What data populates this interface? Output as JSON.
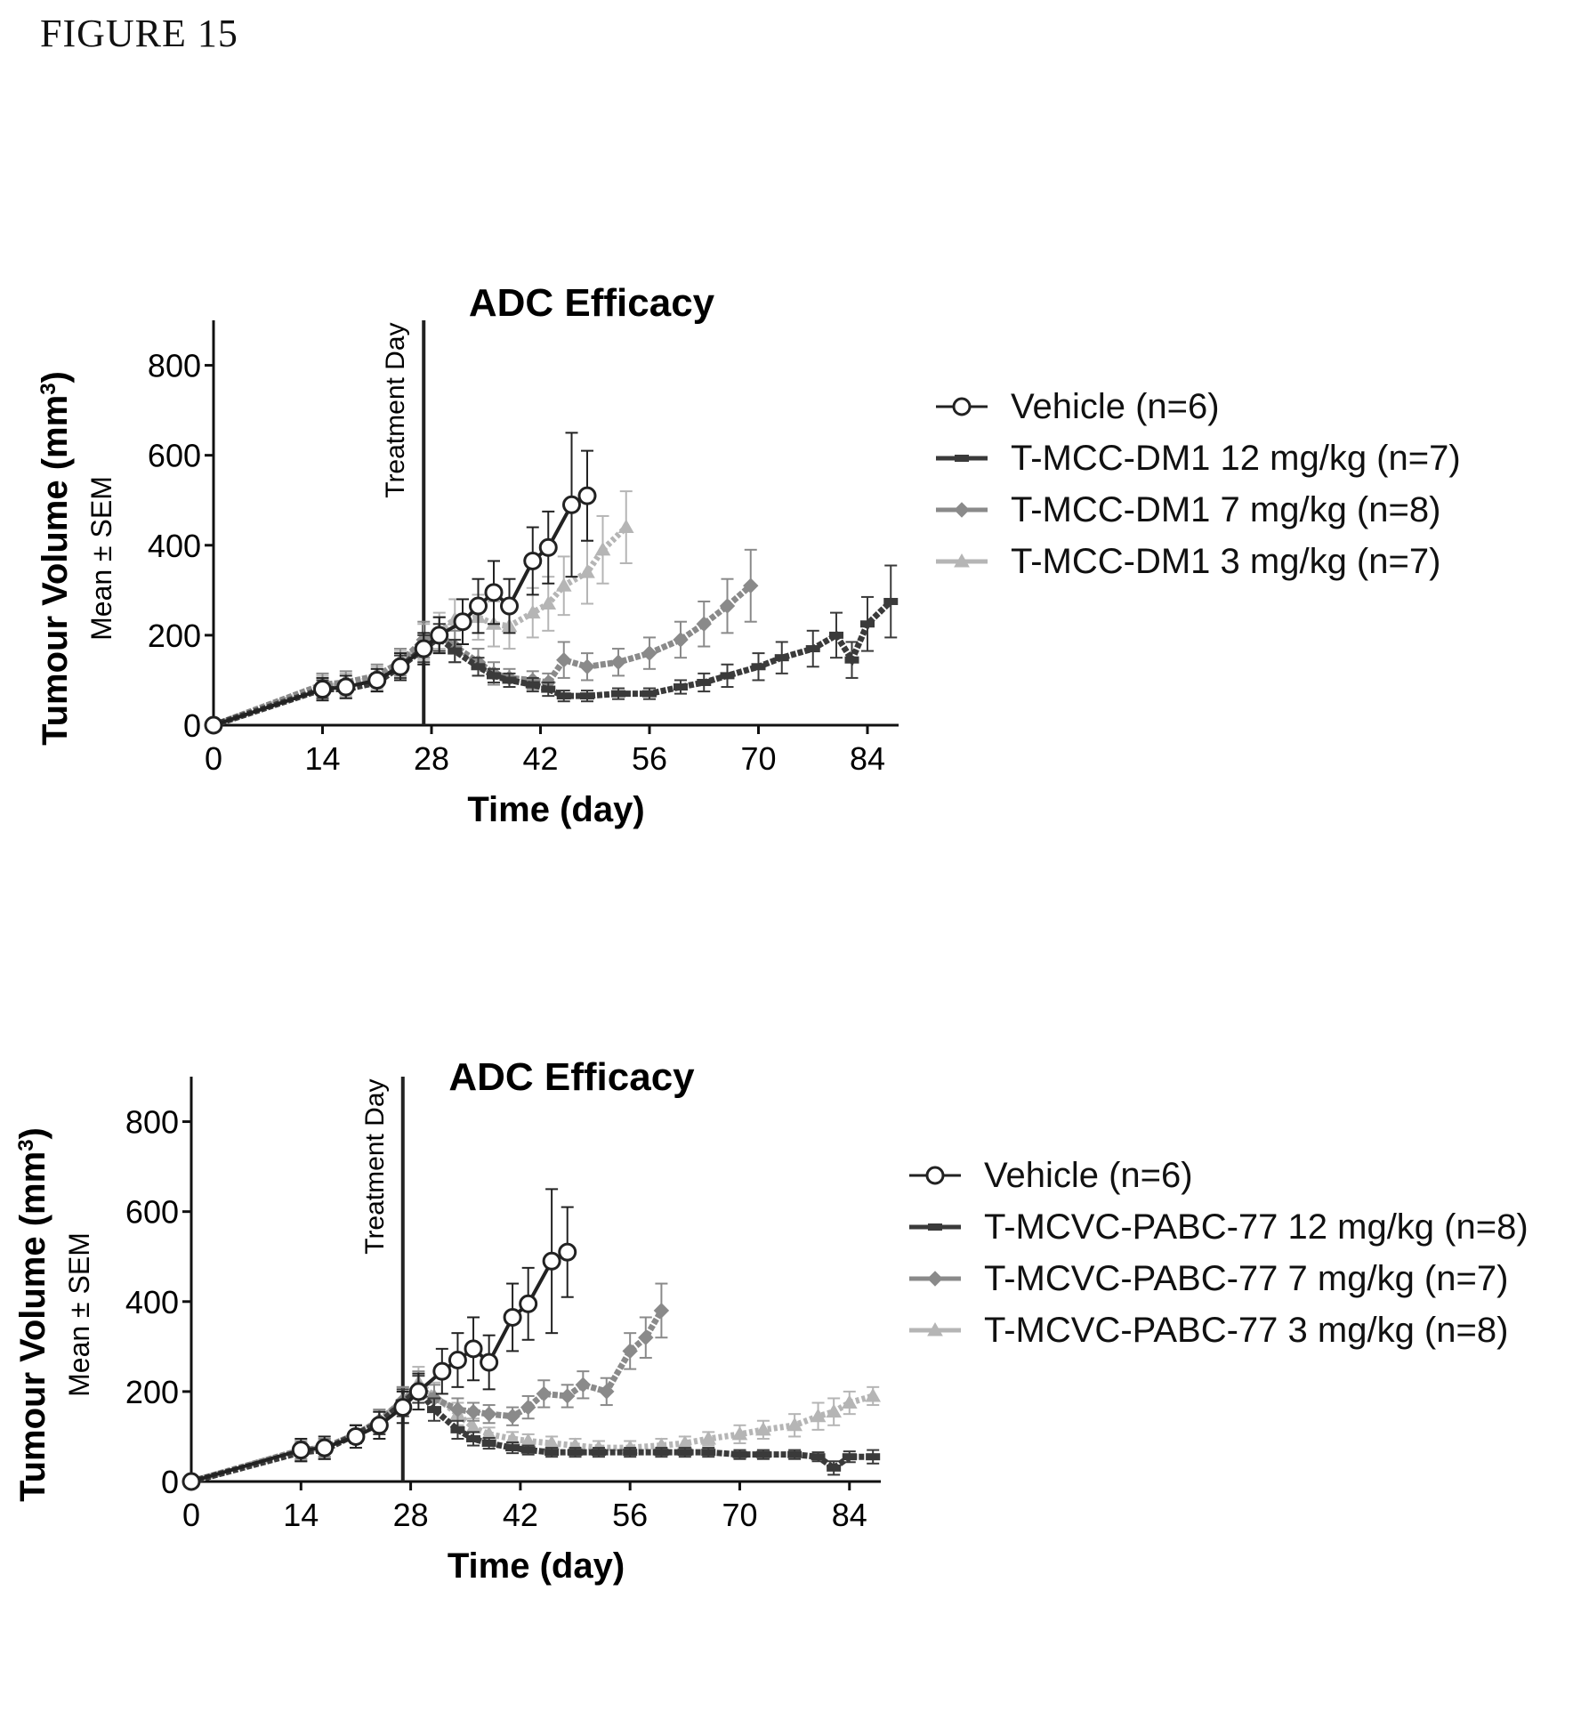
{
  "figure_label": "FIGURE 15",
  "colors": {
    "vehicle": "#222222",
    "dose12": "#3a3a3a",
    "dose7": "#8a8a8a",
    "dose3": "#b5b5b5",
    "axis": "#111111"
  },
  "chart_data": [
    {
      "type": "line",
      "title": "ADC  Efficacy",
      "xlabel": "Time (day)",
      "ylabel": "Tumour  Volume (mm",
      "ylabel_sup": "3",
      "ylabel2": "Mean ± SEM",
      "annotation": "Treatment Day",
      "annotation_x": 27,
      "xlim": [
        0,
        88
      ],
      "ylim": [
        0,
        900
      ],
      "xticks": [
        0,
        14,
        28,
        42,
        56,
        70,
        84
      ],
      "yticks": [
        0,
        200,
        400,
        600,
        800
      ],
      "legend_position": "right",
      "series": [
        {
          "name": "Vehicle (n=6)",
          "marker": "circle",
          "color_key": "vehicle",
          "x": [
            0,
            14,
            17,
            21,
            24,
            27,
            29,
            32,
            34,
            36,
            38,
            41,
            43,
            46,
            48
          ],
          "y": [
            0,
            80,
            85,
            100,
            130,
            170,
            200,
            230,
            265,
            295,
            265,
            365,
            395,
            490,
            510
          ],
          "err": [
            0,
            25,
            25,
            25,
            30,
            35,
            40,
            50,
            60,
            70,
            60,
            75,
            80,
            160,
            100
          ]
        },
        {
          "name": "T-MCC-DM1 12 mg/kg (n=7)",
          "marker": "dash",
          "color_key": "dose12",
          "x": [
            0,
            14,
            17,
            21,
            24,
            27,
            29,
            31,
            34,
            36,
            38,
            41,
            43,
            45,
            48,
            52,
            56,
            60,
            63,
            66,
            70,
            73,
            77,
            80,
            82,
            84,
            87
          ],
          "y": [
            0,
            80,
            80,
            95,
            130,
            170,
            195,
            165,
            130,
            110,
            100,
            90,
            80,
            65,
            65,
            70,
            70,
            85,
            95,
            110,
            130,
            150,
            170,
            200,
            145,
            225,
            275
          ],
          "err": [
            0,
            20,
            20,
            20,
            25,
            30,
            30,
            25,
            20,
            15,
            15,
            15,
            15,
            12,
            12,
            12,
            12,
            15,
            20,
            25,
            30,
            35,
            40,
            50,
            40,
            60,
            80
          ]
        },
        {
          "name": "T-MCC-DM1 7 mg/kg (n=8)",
          "marker": "diamond",
          "color_key": "dose7",
          "x": [
            0,
            14,
            17,
            21,
            24,
            27,
            29,
            31,
            34,
            36,
            38,
            41,
            43,
            45,
            48,
            52,
            56,
            60,
            63,
            66,
            69
          ],
          "y": [
            0,
            90,
            95,
            110,
            140,
            190,
            200,
            175,
            140,
            115,
            105,
            100,
            95,
            145,
            130,
            140,
            160,
            190,
            225,
            265,
            310
          ],
          "err": [
            0,
            25,
            25,
            25,
            30,
            40,
            40,
            35,
            30,
            25,
            20,
            20,
            20,
            40,
            30,
            30,
            35,
            40,
            50,
            60,
            80
          ]
        },
        {
          "name": "T-MCC-DM1 3 mg/kg (n=7)",
          "marker": "tri",
          "color_key": "dose3",
          "x": [
            0,
            14,
            17,
            21,
            24,
            27,
            29,
            31,
            34,
            36,
            38,
            41,
            43,
            45,
            48,
            50,
            53
          ],
          "y": [
            0,
            85,
            90,
            105,
            135,
            185,
            210,
            235,
            240,
            225,
            220,
            250,
            270,
            310,
            340,
            390,
            440
          ],
          "err": [
            0,
            25,
            25,
            25,
            30,
            40,
            40,
            45,
            50,
            50,
            50,
            55,
            60,
            65,
            70,
            75,
            80
          ]
        }
      ]
    },
    {
      "type": "line",
      "title": "ADC  Efficacy",
      "xlabel": "Time (day)",
      "ylabel": "Tumour  Volume (mm",
      "ylabel_sup": "3",
      "ylabel2": "Mean ± SEM",
      "annotation": "Treatment Day",
      "annotation_x": 27,
      "xlim": [
        0,
        88
      ],
      "ylim": [
        0,
        900
      ],
      "xticks": [
        0,
        14,
        28,
        42,
        56,
        70,
        84
      ],
      "yticks": [
        0,
        200,
        400,
        600,
        800
      ],
      "legend_position": "right",
      "series": [
        {
          "name": "Vehicle (n=6)",
          "marker": "circle",
          "color_key": "vehicle",
          "x": [
            0,
            14,
            17,
            21,
            24,
            27,
            29,
            32,
            34,
            36,
            38,
            41,
            43,
            46,
            48
          ],
          "y": [
            0,
            70,
            75,
            100,
            125,
            165,
            200,
            245,
            270,
            295,
            265,
            365,
            395,
            490,
            510
          ],
          "err": [
            0,
            25,
            25,
            25,
            30,
            35,
            40,
            50,
            60,
            70,
            60,
            75,
            80,
            160,
            100
          ]
        },
        {
          "name": "T-MCVC-PABC-77 12 mg/kg (n=8)",
          "marker": "dash",
          "color_key": "dose12",
          "x": [
            0,
            14,
            17,
            21,
            24,
            27,
            29,
            31,
            34,
            36,
            38,
            41,
            43,
            46,
            49,
            52,
            56,
            60,
            63,
            66,
            70,
            73,
            77,
            80,
            82,
            84,
            87
          ],
          "y": [
            0,
            65,
            70,
            105,
            130,
            175,
            205,
            160,
            115,
            95,
            85,
            75,
            70,
            65,
            65,
            65,
            65,
            65,
            65,
            65,
            60,
            60,
            60,
            55,
            30,
            55,
            55
          ],
          "err": [
            0,
            20,
            20,
            20,
            25,
            30,
            30,
            25,
            20,
            15,
            12,
            12,
            10,
            10,
            10,
            10,
            10,
            10,
            10,
            10,
            10,
            10,
            10,
            10,
            15,
            12,
            15
          ]
        },
        {
          "name": "T-MCVC-PABC-77 7 mg/kg (n=7)",
          "marker": "diamond",
          "color_key": "dose7",
          "x": [
            0,
            14,
            17,
            21,
            24,
            27,
            29,
            31,
            34,
            36,
            38,
            41,
            43,
            45,
            48,
            50,
            53,
            56,
            58,
            60
          ],
          "y": [
            0,
            70,
            75,
            105,
            135,
            180,
            210,
            185,
            160,
            155,
            150,
            145,
            165,
            195,
            190,
            215,
            200,
            290,
            320,
            380
          ],
          "err": [
            0,
            20,
            20,
            20,
            25,
            30,
            35,
            30,
            25,
            20,
            20,
            20,
            25,
            30,
            25,
            30,
            30,
            40,
            45,
            60
          ]
        },
        {
          "name": "T-MCVC-PABC-77 3 mg/kg (n=8)",
          "marker": "tri",
          "color_key": "dose3",
          "x": [
            0,
            14,
            17,
            21,
            24,
            27,
            29,
            31,
            34,
            36,
            38,
            41,
            43,
            46,
            49,
            52,
            56,
            60,
            63,
            66,
            70,
            73,
            77,
            80,
            82,
            84,
            87
          ],
          "y": [
            0,
            70,
            75,
            105,
            135,
            180,
            220,
            190,
            150,
            120,
            105,
            95,
            90,
            85,
            80,
            75,
            75,
            80,
            85,
            95,
            105,
            115,
            125,
            145,
            155,
            175,
            190
          ],
          "err": [
            0,
            20,
            20,
            20,
            25,
            30,
            35,
            30,
            25,
            20,
            15,
            15,
            15,
            15,
            15,
            15,
            15,
            15,
            15,
            15,
            20,
            20,
            25,
            30,
            30,
            25,
            20
          ]
        }
      ]
    }
  ]
}
